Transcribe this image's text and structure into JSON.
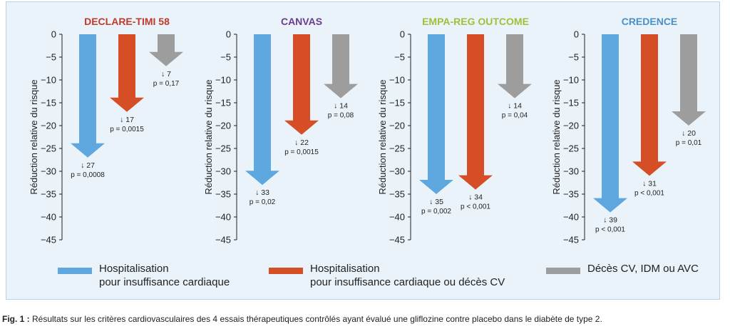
{
  "chart_data": [
    {
      "type": "bar",
      "title": "DECLARE-TIMI 58",
      "title_color": "#c0392b",
      "ylabel": "Réduction relative du risque",
      "ylim": [
        -45,
        0
      ],
      "yticks": [
        0,
        -5,
        -10,
        -15,
        -20,
        -25,
        -30,
        -35,
        -40,
        -45
      ],
      "series": [
        {
          "name": "Hospitalisation pour insuffisance cardiaque",
          "value": -27,
          "label": "↓ 27",
          "p": "p = 0,0008"
        },
        {
          "name": "Hospitalisation pour insuffisance cardiaque ou décès CV",
          "value": -17,
          "label": "↓ 17",
          "p": "p = 0,0015"
        },
        {
          "name": "Décès CV, IDM ou AVC",
          "value": -7,
          "label": "↓ 7",
          "p": "p = 0,17"
        }
      ]
    },
    {
      "type": "bar",
      "title": "CANVAS",
      "title_color": "#6a3d8f",
      "ylabel": "Réduction relative du risque",
      "ylim": [
        -45,
        0
      ],
      "yticks": [
        0,
        -5,
        -10,
        -15,
        -20,
        -25,
        -30,
        -35,
        -40,
        -45
      ],
      "series": [
        {
          "name": "Hospitalisation pour insuffisance cardiaque",
          "value": -33,
          "label": "↓ 33",
          "p": "p = 0,02"
        },
        {
          "name": "Hospitalisation pour insuffisance cardiaque ou décès CV",
          "value": -22,
          "label": "↓ 22",
          "p": "p = 0,0015"
        },
        {
          "name": "Décès CV, IDM ou AVC",
          "value": -14,
          "label": "↓ 14",
          "p": "p = 0,08"
        }
      ]
    },
    {
      "type": "bar",
      "title": "EMPA-REG OUTCOME",
      "title_color": "#9dc13b",
      "ylabel": "Réduction relative du risque",
      "ylim": [
        -45,
        0
      ],
      "yticks": [
        0,
        -5,
        -10,
        -15,
        -20,
        -25,
        -30,
        -35,
        -40,
        -45
      ],
      "series": [
        {
          "name": "Hospitalisation pour insuffisance cardiaque",
          "value": -35,
          "label": "↓ 35",
          "p": "p = 0,002"
        },
        {
          "name": "Hospitalisation pour insuffisance cardiaque ou décès CV",
          "value": -34,
          "label": "↓ 34",
          "p": "p < 0,001"
        },
        {
          "name": "Décès CV, IDM ou AVC",
          "value": -14,
          "label": "↓ 14",
          "p": "p = 0,04"
        }
      ]
    },
    {
      "type": "bar",
      "title": "CREDENCE",
      "title_color": "#4a90c8",
      "ylabel": "Réduction relative du risque",
      "ylim": [
        -45,
        0
      ],
      "yticks": [
        0,
        -5,
        -10,
        -15,
        -20,
        -25,
        -30,
        -35,
        -40,
        -45
      ],
      "series": [
        {
          "name": "Hospitalisation pour insuffisance cardiaque",
          "value": -39,
          "label": "↓ 39",
          "p": "p < 0,001"
        },
        {
          "name": "Hospitalisation pour insuffisance cardiaque ou décès CV",
          "value": -31,
          "label": "↓ 31",
          "p": "p < 0,001"
        },
        {
          "name": "Décès CV, IDM ou AVC",
          "value": -20,
          "label": "↓ 20",
          "p": "p = 0,01"
        }
      ]
    }
  ],
  "series_colors": [
    "#5fa8df",
    "#d54e26",
    "#9d9d9d"
  ],
  "legend": {
    "item1_line1": "Hospitalisation",
    "item1_line2": "pour insuffisance cardiaque",
    "item2_line1": "Hospitalisation",
    "item2_line2": "pour insuffisance cardiaque ou décès CV",
    "item3": "Décès CV, IDM ou AVC"
  },
  "caption": {
    "prefix": "Fig. 1 :",
    "text": " Résultats sur les critères cardiovasculaires des 4 essais thérapeutiques contrôlés ayant évalué une gliflozine contre placebo dans le diabète de type 2."
  }
}
